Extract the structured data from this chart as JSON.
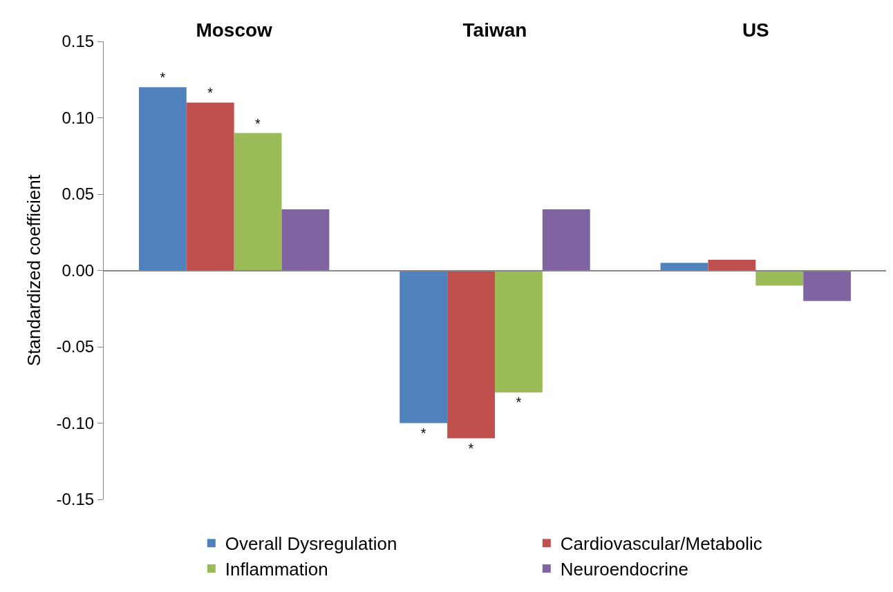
{
  "chart_data": {
    "type": "bar",
    "ylabel": "Standardized coefficient",
    "categories": [
      "Moscow",
      "Taiwan",
      "US"
    ],
    "series": [
      {
        "name": "Overall Dysregulation",
        "color": "#4f81bd",
        "values": [
          0.12,
          -0.1,
          0.005
        ],
        "value_labels": [
          "*",
          "*",
          null
        ]
      },
      {
        "name": "Cardiovascular/Metabolic",
        "color": "#c0504d",
        "values": [
          0.11,
          -0.11,
          0.007
        ],
        "value_labels": [
          "*",
          "*",
          null
        ]
      },
      {
        "name": "Inflammation",
        "color": "#9bbb59",
        "values": [
          0.09,
          -0.08,
          -0.01
        ],
        "value_labels": [
          "*",
          "*",
          null
        ]
      },
      {
        "name": "Neuroendocrine",
        "color": "#8064a2",
        "values": [
          0.04,
          0.04,
          -0.02
        ],
        "value_labels": [
          null,
          null,
          null
        ]
      }
    ],
    "ylim": [
      -0.15,
      0.15
    ],
    "yticks": [
      {
        "value": -0.15,
        "label": "-0.15"
      },
      {
        "value": -0.1,
        "label": "-0.10"
      },
      {
        "value": -0.05,
        "label": "-0.05"
      },
      {
        "value": 0,
        "label": "0.00"
      },
      {
        "value": 0.05,
        "label": "0.05"
      },
      {
        "value": 0.1,
        "label": "0.10"
      },
      {
        "value": 0.15,
        "label": "0.15"
      }
    ],
    "legend": "bottom"
  }
}
